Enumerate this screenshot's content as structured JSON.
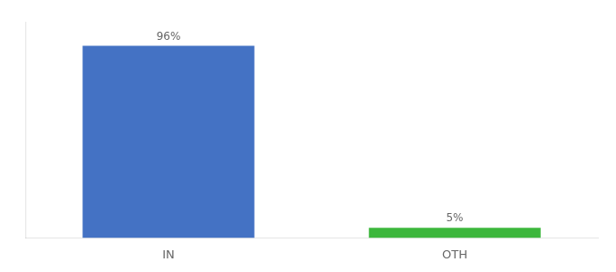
{
  "chart_data": {
    "type": "bar",
    "categories": [
      "IN",
      "OTH"
    ],
    "values": [
      96,
      5
    ],
    "value_labels": [
      "96%",
      "5%"
    ],
    "colors": [
      "#4472c4",
      "#3cb73c"
    ],
    "data_labels": true,
    "ylim": [
      0,
      108
    ],
    "tick_labels": "x",
    "grid": false
  }
}
